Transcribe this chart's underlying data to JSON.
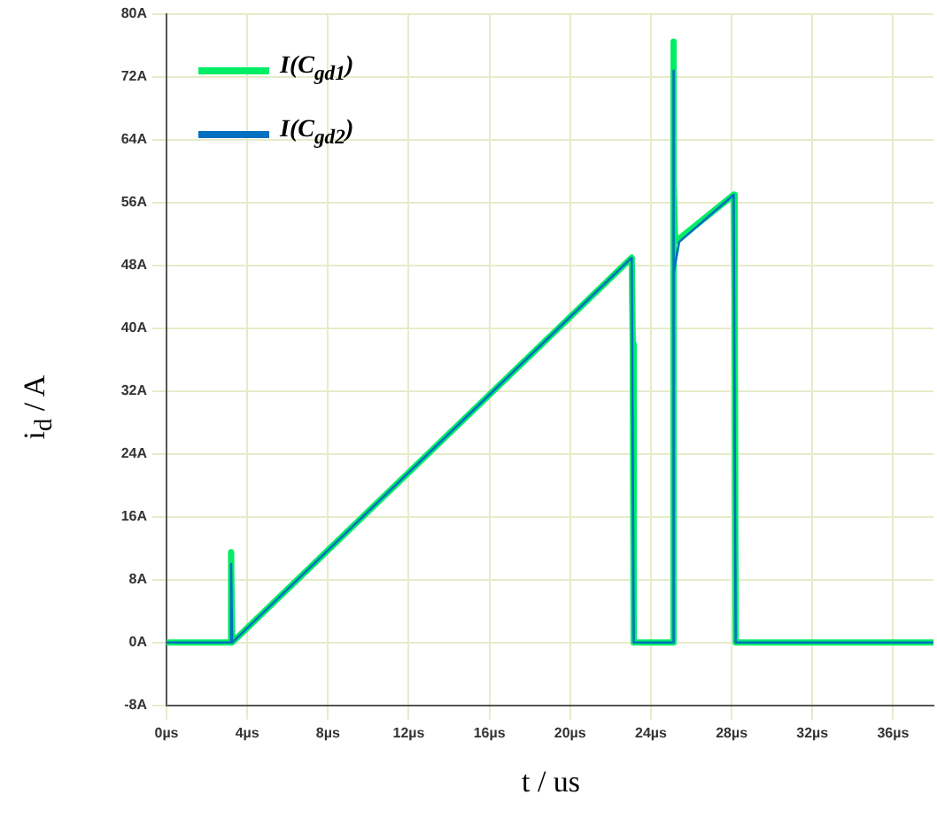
{
  "chart_data": {
    "type": "line",
    "xlabel": "t / us",
    "ylabel": "i$_{d}$ / A",
    "legend": "top left",
    "grid": true,
    "marker": "none",
    "line_style": "solid",
    "xlim": [
      0,
      38
    ],
    "xticks": [
      {
        "value": 0,
        "label": "0µs"
      },
      {
        "value": 4,
        "label": "4µs"
      },
      {
        "value": 8,
        "label": "8µs"
      },
      {
        "value": 12,
        "label": "12µs"
      },
      {
        "value": 16,
        "label": "16µs"
      },
      {
        "value": 20,
        "label": "20µs"
      },
      {
        "value": 24,
        "label": "24µs"
      },
      {
        "value": 28,
        "label": "28µs"
      },
      {
        "value": 32,
        "label": "32µs"
      },
      {
        "value": 36,
        "label": "36µs"
      }
    ],
    "ylim": [
      -8,
      80
    ],
    "yticks": [
      {
        "value": -8,
        "label": "-8A"
      },
      {
        "value": 0,
        "label": "0A"
      },
      {
        "value": 8,
        "label": "8A"
      },
      {
        "value": 16,
        "label": "16A"
      },
      {
        "value": 24,
        "label": "24A"
      },
      {
        "value": 32,
        "label": "32A"
      },
      {
        "value": 40,
        "label": "40A"
      },
      {
        "value": 48,
        "label": "48A"
      },
      {
        "value": 56,
        "label": "56A"
      },
      {
        "value": 64,
        "label": "64A"
      },
      {
        "value": 72,
        "label": "72A"
      },
      {
        "value": 80,
        "label": "80A"
      }
    ],
    "series": [
      {
        "name": "I(C$_{gd1}$)",
        "color": "#00ee66",
        "x": [
          0,
          3.2,
          3.2,
          3.25,
          23.05,
          23.1,
          23.15,
          25.1,
          25.1,
          25.15,
          25.2,
          28.1,
          28.15,
          28.2,
          38
        ],
        "values": [
          0,
          0,
          11.5,
          0,
          49,
          38,
          0,
          0,
          76.5,
          58.5,
          51,
          57,
          44,
          0,
          0
        ]
      },
      {
        "name": "I(C$_{gd2}$)",
        "color": "#0070c0",
        "x": [
          0,
          3.2,
          3.2,
          3.25,
          23.05,
          23.15,
          25.1,
          25.1,
          25.15,
          25.4,
          28.1,
          28.2,
          38
        ],
        "values": [
          0,
          0,
          10,
          0,
          49,
          0,
          0,
          72.8,
          47,
          51,
          57,
          0,
          0
        ]
      }
    ]
  }
}
